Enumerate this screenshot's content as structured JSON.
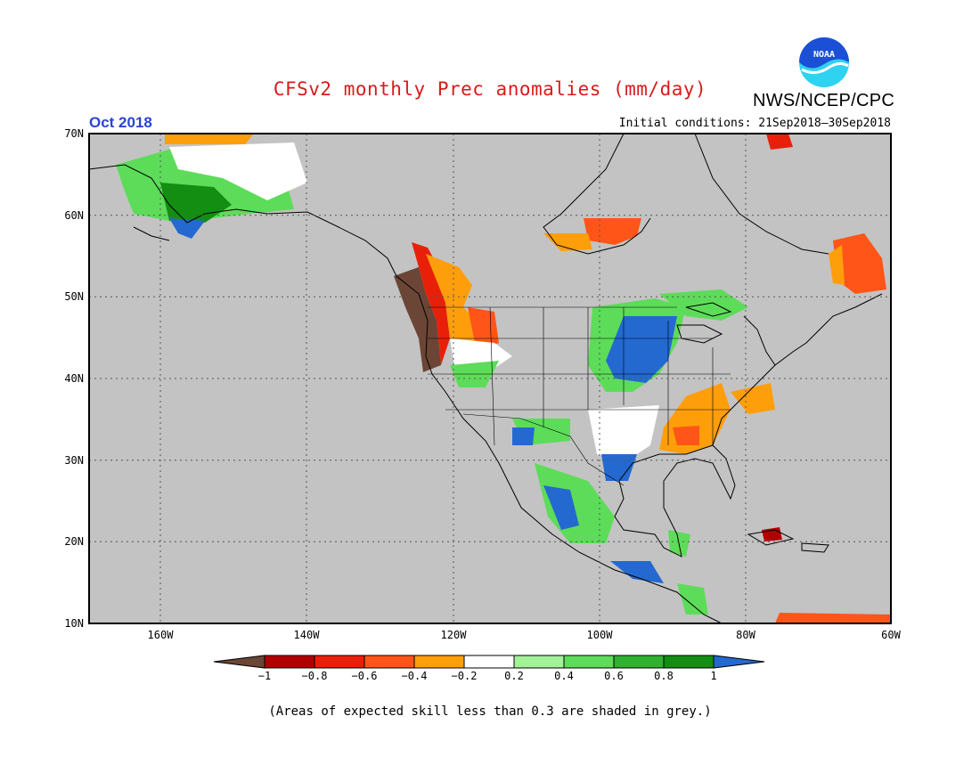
{
  "header": {
    "title": "CFSv2 monthly Prec anomalies (mm/day)",
    "organization": "NWS/NCEP/CPC",
    "logo_text": "NOAA",
    "target_month": "Oct 2018",
    "initial_conditions": "Initial conditions: 21Sep2018–30Sep2018"
  },
  "map": {
    "lat_labels": [
      "70N",
      "60N",
      "50N",
      "40N",
      "30N",
      "20N",
      "10N"
    ],
    "lon_labels": [
      "160W",
      "140W",
      "120W",
      "100W",
      "80W",
      "60W"
    ],
    "grey_shade_meaning": "skill < 0.3"
  },
  "legend": {
    "tick_labels": [
      "−1",
      "−0.8",
      "−0.6",
      "−0.4",
      "−0.2",
      "0.2",
      "0.4",
      "0.6",
      "0.8",
      "1"
    ],
    "colors": {
      "below_min": "#6b4535",
      "bins": [
        "#b10000",
        "#e8200a",
        "#ff5518",
        "#ff9e0b",
        "#ffffff",
        "#a2f298",
        "#5ddc59",
        "#2fb22f",
        "#138e13"
      ],
      "above_max": "#2469d0"
    }
  },
  "footnote": "(Areas of expected skill less than 0.3 are shaded in grey.)",
  "colors": {
    "title_red": "#d91a1a",
    "month_blue": "#2a44d4",
    "map_grey": "#c3c3c3",
    "noaa_blue": "#1b4fd6",
    "noaa_cyan": "#2fd2f0"
  }
}
